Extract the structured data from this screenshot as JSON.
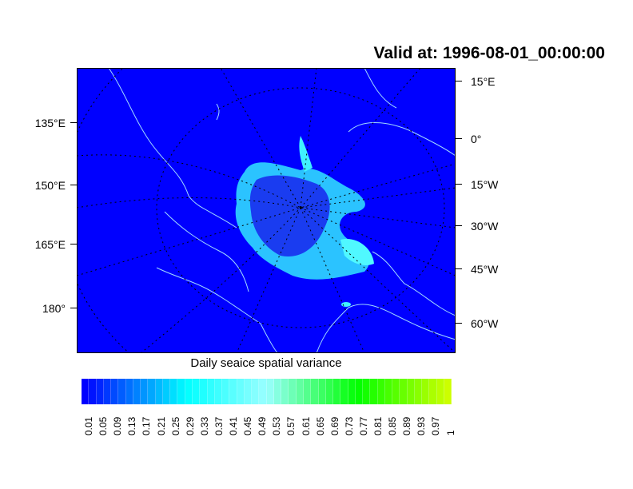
{
  "title": "Valid at: 1996-08-01_00:00:00",
  "caption": "Daily seaice spatial variance",
  "map": {
    "projection": "polar-stereographic",
    "background_color": "#0000ff",
    "coastline_color": "#a0d8ff",
    "ice_color": "#40f0ff",
    "left_labels": [
      "135°E",
      "150°E",
      "165°E",
      "180°"
    ],
    "right_labels": [
      "15°E",
      "0°",
      "15°W",
      "30°W",
      "45°W",
      "60°W"
    ]
  },
  "colorbar": {
    "labels": [
      "0.01",
      "0.05",
      "0.09",
      "0.13",
      "0.17",
      "0.21",
      "0.25",
      "0.29",
      "0.33",
      "0.37",
      "0.41",
      "0.45",
      "0.49",
      "0.53",
      "0.57",
      "0.61",
      "0.65",
      "0.69",
      "0.73",
      "0.77",
      "0.81",
      "0.85",
      "0.89",
      "0.93",
      "0.97",
      "1"
    ],
    "colors": [
      "#0000ff",
      "#00ffff",
      "#99ffff",
      "#00ff00",
      "#ccff00"
    ]
  }
}
